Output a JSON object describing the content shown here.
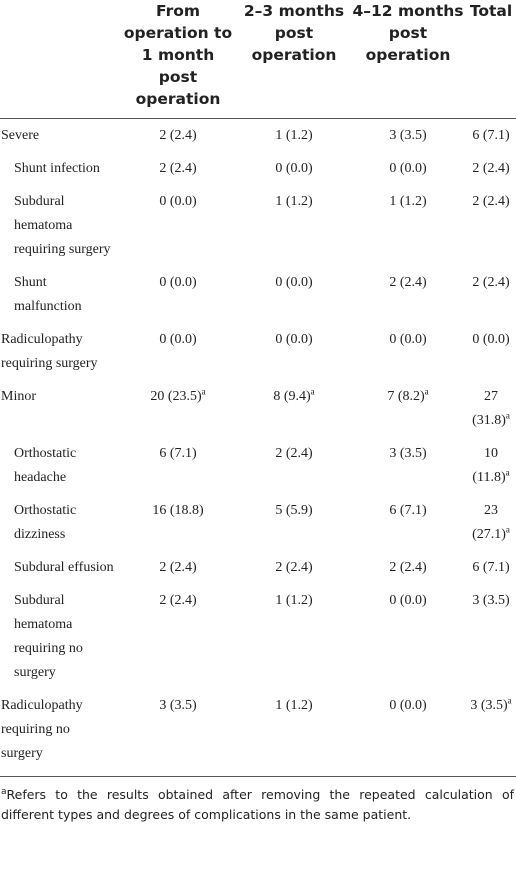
{
  "table": {
    "header": [
      "",
      "From operation to 1 month post operation",
      "2–3 months post operation",
      "4–12 months post operation",
      "Total"
    ],
    "rows": [
      {
        "label": "Severe",
        "sub": false,
        "cells": [
          {
            "text": "2 (2.4)"
          },
          {
            "text": "1 (1.2)"
          },
          {
            "text": "3 (3.5)"
          },
          {
            "text": "6 (7.1)"
          }
        ]
      },
      {
        "label": "Shunt infection",
        "sub": true,
        "cells": [
          {
            "text": "2 (2.4)"
          },
          {
            "text": "0 (0.0)"
          },
          {
            "text": "0 (0.0)"
          },
          {
            "text": "2 (2.4)"
          }
        ]
      },
      {
        "label": "Subdural hematoma requiring surgery",
        "sub": true,
        "cells": [
          {
            "text": "0 (0.0)"
          },
          {
            "text": "1 (1.2)"
          },
          {
            "text": "1 (1.2)"
          },
          {
            "text": "2 (2.4)"
          }
        ]
      },
      {
        "label": "Shunt malfunction",
        "sub": true,
        "cells": [
          {
            "text": "0 (0.0)"
          },
          {
            "text": "0 (0.0)"
          },
          {
            "text": "2 (2.4)"
          },
          {
            "text": "2 (2.4)"
          }
        ]
      },
      {
        "label": "Radiculopathy requiring surgery",
        "sub": false,
        "cells": [
          {
            "text": "0 (0.0)"
          },
          {
            "text": "0 (0.0)"
          },
          {
            "text": "0 (0.0)"
          },
          {
            "text": "0 (0.0)"
          }
        ]
      },
      {
        "label": "Minor",
        "sub": false,
        "cells": [
          {
            "text": "20 (23.5)",
            "sup": "a"
          },
          {
            "text": "8 (9.4)",
            "sup": "a"
          },
          {
            "text": "7 (8.2)",
            "sup": "a"
          },
          {
            "text": "27 (31.8)",
            "sup": "a"
          }
        ]
      },
      {
        "label": "Orthostatic headache",
        "sub": true,
        "cells": [
          {
            "text": "6 (7.1)"
          },
          {
            "text": "2 (2.4)"
          },
          {
            "text": "3 (3.5)"
          },
          {
            "text": "10 (11.8)",
            "sup": "a"
          }
        ]
      },
      {
        "label": "Orthostatic dizziness",
        "sub": true,
        "cells": [
          {
            "text": "16 (18.8)"
          },
          {
            "text": "5 (5.9)"
          },
          {
            "text": "6 (7.1)"
          },
          {
            "text": "23 (27.1)",
            "sup": "a"
          }
        ]
      },
      {
        "label": "Subdural effusion",
        "sub": true,
        "cells": [
          {
            "text": "2 (2.4)"
          },
          {
            "text": "2 (2.4)"
          },
          {
            "text": "2 (2.4)"
          },
          {
            "text": "6 (7.1)"
          }
        ]
      },
      {
        "label": "Subdural hematoma requiring no surgery",
        "sub": true,
        "cells": [
          {
            "text": "2 (2.4)"
          },
          {
            "text": "1 (1.2)"
          },
          {
            "text": "0 (0.0)"
          },
          {
            "text": "3 (3.5)"
          }
        ]
      },
      {
        "label": "Radiculopathy requiring no surgery",
        "sub": false,
        "cells": [
          {
            "text": "3 (3.5)"
          },
          {
            "text": "1 (1.2)"
          },
          {
            "text": "0 (0.0)"
          },
          {
            "text": "3 (3.5)",
            "sup": "a"
          }
        ]
      }
    ]
  },
  "footnote": {
    "marker": "a",
    "text": "Refers to the results obtained after removing the repeated calculation of different types and degrees of complications in the same patient."
  }
}
